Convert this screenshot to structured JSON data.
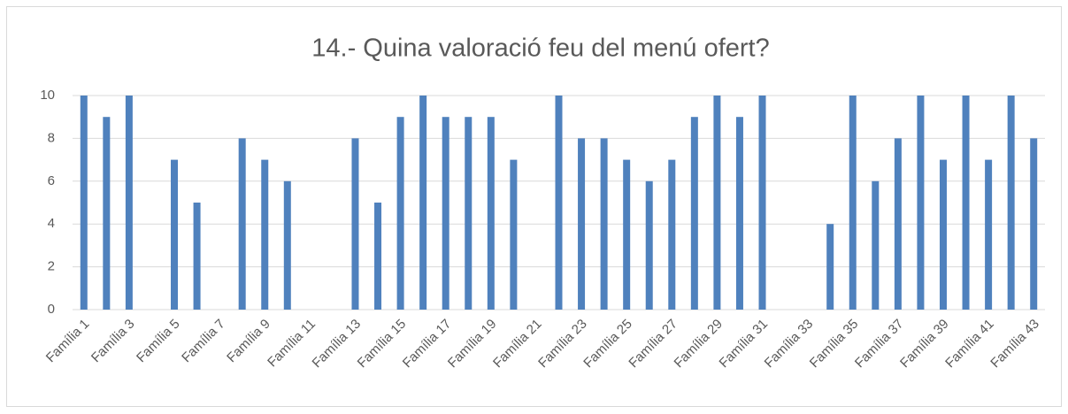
{
  "chart_data": {
    "type": "bar",
    "title": "14.- Quina valoració feu del menú ofert?",
    "categories": [
      "Família 1",
      null,
      "Família 3",
      null,
      "Família 5",
      null,
      "Família 7",
      null,
      "Família 9",
      null,
      "Família 11",
      null,
      "Família 13",
      null,
      "Família 15",
      null,
      "Família 17",
      null,
      "Família 19",
      null,
      "Família 21",
      null,
      "Família 23",
      null,
      "Família 25",
      null,
      "Família 27",
      null,
      "Família 29",
      null,
      "Família 31",
      null,
      "Família 33",
      null,
      "Família 35",
      null,
      "Família 37",
      null,
      "Família 39",
      null,
      "Família 41",
      null,
      "Família 43"
    ],
    "values": [
      10,
      9,
      10,
      null,
      7,
      5,
      null,
      8,
      7,
      6,
      null,
      null,
      8,
      5,
      9,
      10,
      9,
      9,
      9,
      7,
      null,
      10,
      8,
      8,
      7,
      6,
      7,
      9,
      10,
      9,
      10,
      null,
      null,
      4,
      10,
      6,
      8,
      10,
      7,
      10,
      7,
      10,
      8
    ],
    "color": "#4f81bd",
    "ylim": [
      0,
      10
    ],
    "yticks": [
      0,
      2,
      4,
      6,
      8,
      10
    ],
    "grid": true
  }
}
